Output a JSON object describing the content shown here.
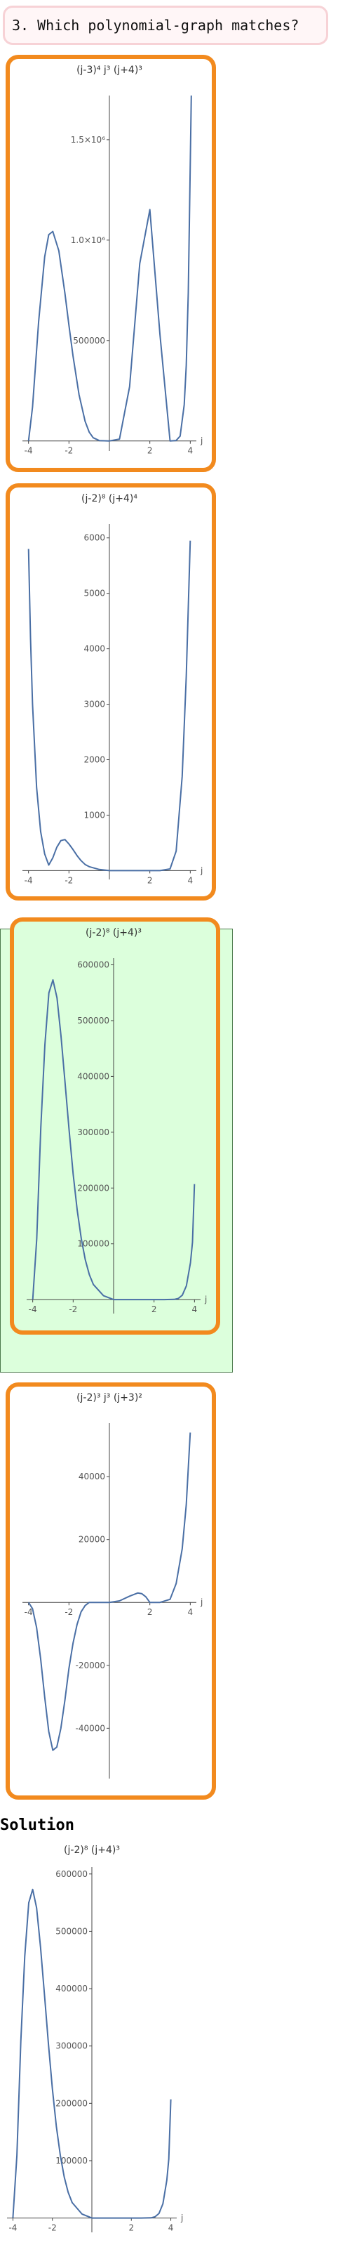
{
  "question": {
    "text": "3. Which polynomial-graph matches?"
  },
  "solution": {
    "heading": "Solution"
  },
  "colors": {
    "curve": "#4a6fa5",
    "border": "#f28a1e",
    "correct_bg": "#dcffdc",
    "axis": "#444444"
  },
  "options": [
    {
      "correct": false,
      "chart_data": {
        "type": "line",
        "title": "(j-3)⁴ j³ (j+4)³",
        "xlabel": "j",
        "xlim": [
          -4.3,
          4.3
        ],
        "ylim": [
          -50000,
          1720000
        ],
        "x_ticks": [
          -4,
          -2,
          2,
          4
        ],
        "x_tick_labels": [
          "-4",
          "-2",
          "2",
          "4"
        ],
        "y_ticks": [
          500000,
          1000000,
          1500000
        ],
        "y_tick_labels": [
          "500000",
          "1.0×10⁶",
          "1.5×10⁶"
        ],
        "series": [
          {
            "x": [
              -4,
              -3.8,
              -3.5,
              -3.2,
              -3,
              -2.8,
              -2.5,
              -2.2,
              -2,
              -1.8,
              -1.5,
              -1.2,
              -1,
              -0.8,
              -0.5,
              0,
              0.5,
              1,
              1.5,
              2,
              2.5,
              3,
              3.3,
              3.5,
              3.7,
              3.8,
              3.9,
              4,
              4.05
            ],
            "y": [
              0,
              168900,
              594400,
              916400,
              1027000,
              1043300,
              947000,
              734600,
              576000,
              423500,
              230700,
              97400,
              43900,
              15600,
              1700,
              0,
              9200,
              270000,
              883400,
              1152000,
              530000,
              0,
              2070,
              24100,
              180200,
              375500,
              738100,
              1372200,
              1840000
            ]
          }
        ]
      }
    },
    {
      "correct": false,
      "chart_data": {
        "type": "line",
        "title": "(j-2)⁸ (j+4)⁴",
        "xlabel": "j",
        "xlim": [
          -4.3,
          4.3
        ],
        "ylim": [
          -160,
          6250
        ],
        "x_ticks": [
          -4,
          -2,
          2,
          4
        ],
        "x_tick_labels": [
          "-4",
          "-2",
          "2",
          "4"
        ],
        "y_ticks": [
          1000,
          2000,
          3000,
          4000,
          5000,
          6000
        ],
        "y_tick_labels": [
          "1000",
          "2000",
          "3000",
          "4000",
          "5000",
          "6000"
        ],
        "series": [
          {
            "x": [
              -4,
              -3.9,
              -3.8,
              -3.6,
              -3.4,
              -3.2,
              -3,
              -2.8,
              -2.6,
              -2.4,
              -2.2,
              -2,
              -1.8,
              -1.6,
              -1.4,
              -1.2,
              -1,
              -0.5,
              0,
              0.5,
              1,
              1.5,
              2,
              2.5,
              3,
              3.3,
              3.6,
              3.8,
              4
            ],
            "y": [
              5800,
              4200,
              3000,
              1500,
              700,
              300,
              100,
              230,
              420,
              540,
              560,
              480,
              380,
              270,
              180,
              110,
              70,
              20,
              0,
              0,
              0,
              0,
              0,
              0,
              30,
              350,
              1700,
              3500,
              5950
            ]
          }
        ]
      }
    },
    {
      "correct": true,
      "chart_data": {
        "type": "line",
        "title": "(j-2)⁸ (j+4)³",
        "xlabel": "j",
        "xlim": [
          -4.3,
          4.3
        ],
        "ylim": [
          -25000,
          612000
        ],
        "x_ticks": [
          -4,
          -2,
          2,
          4
        ],
        "x_tick_labels": [
          "-4",
          "-2",
          "2",
          "4"
        ],
        "y_ticks": [
          100000,
          200000,
          300000,
          400000,
          500000,
          600000
        ],
        "y_tick_labels": [
          "100000",
          "200000",
          "300000",
          "400000",
          "500000",
          "600000"
        ],
        "series": [
          {
            "x": [
              -4,
              -3.8,
              -3.6,
              -3.4,
              -3.2,
              -3,
              -2.8,
              -2.6,
              -2.4,
              -2.2,
              -2,
              -1.8,
              -1.6,
              -1.4,
              -1.2,
              -1,
              -0.5,
              0,
              0.5,
              1,
              1.5,
              2,
              2.5,
              3,
              3.2,
              3.4,
              3.6,
              3.8,
              3.9,
              4
            ],
            "y": [
              0,
              109200,
              308500,
              456400,
              549800,
              573000,
              540800,
              472300,
              388300,
              303100,
              225400,
              160300,
              109300,
              71500,
              44800,
              27000,
              7000,
              0,
              0,
              0,
              0,
              0,
              0,
              400,
              2100,
              8000,
              24700,
              66000,
              103000,
              207000
            ]
          }
        ]
      }
    },
    {
      "correct": false,
      "chart_data": {
        "type": "line",
        "title": "(j-2)³ j³ (j+3)²",
        "xlabel": "j",
        "xlim": [
          -4.3,
          4.3
        ],
        "ylim": [
          -56000,
          57000
        ],
        "x_ticks": [
          -4,
          -2,
          2,
          4
        ],
        "x_tick_labels": [
          "-4",
          "-2",
          "2",
          "4"
        ],
        "y_ticks": [
          -40000,
          -20000,
          20000,
          40000
        ],
        "y_tick_labels": [
          "-40000",
          "-20000",
          "20000",
          "40000"
        ],
        "series": [
          {
            "x": [
              -4,
              -3.8,
              -3.6,
              -3.4,
              -3.2,
              -3,
              -2.8,
              -2.6,
              -2.4,
              -2.2,
              -2,
              -1.8,
              -1.6,
              -1.4,
              -1.2,
              -1,
              -0.5,
              0,
              0.5,
              1,
              1.4,
              1.6,
              1.8,
              2,
              2.5,
              3,
              3.3,
              3.6,
              3.8,
              4
            ],
            "y": [
              0,
              -2000,
              -8000,
              -18000,
              -30000,
              -41000,
              -47000,
              -46000,
              -40000,
              -31000,
              -21000,
              -13000,
              -7000,
              -3000,
              -1000,
              0,
              0,
              0,
              500,
              2000,
              3000,
              2800,
              1800,
              0,
              0,
              1000,
              6000,
              17000,
              31000,
              54000
            ]
          }
        ]
      }
    }
  ],
  "solution_chart": {
    "chart_data": {
      "type": "line",
      "title": "(j-2)⁸ (j+4)³",
      "xlabel": "j",
      "xlim": [
        -4.3,
        4.3
      ],
      "ylim": [
        -25000,
        612000
      ],
      "x_ticks": [
        -4,
        -2,
        2,
        4
      ],
      "x_tick_labels": [
        "-4",
        "-2",
        "2",
        "4"
      ],
      "y_ticks": [
        100000,
        200000,
        300000,
        400000,
        500000,
        600000
      ],
      "y_tick_labels": [
        "100000",
        "200000",
        "300000",
        "400000",
        "500000",
        "600000"
      ],
      "series": [
        {
          "x": [
            -4,
            -3.8,
            -3.6,
            -3.4,
            -3.2,
            -3,
            -2.8,
            -2.6,
            -2.4,
            -2.2,
            -2,
            -1.8,
            -1.6,
            -1.4,
            -1.2,
            -1,
            -0.5,
            0,
            0.5,
            1,
            1.5,
            2,
            2.5,
            3,
            3.2,
            3.4,
            3.6,
            3.8,
            3.9,
            4
          ],
          "y": [
            0,
            109200,
            308500,
            456400,
            549800,
            573000,
            540800,
            472300,
            388300,
            303100,
            225400,
            160300,
            109300,
            71500,
            44800,
            27000,
            7000,
            0,
            0,
            0,
            0,
            0,
            0,
            400,
            2100,
            8000,
            24700,
            66000,
            103000,
            207000
          ]
        }
      ]
    }
  }
}
